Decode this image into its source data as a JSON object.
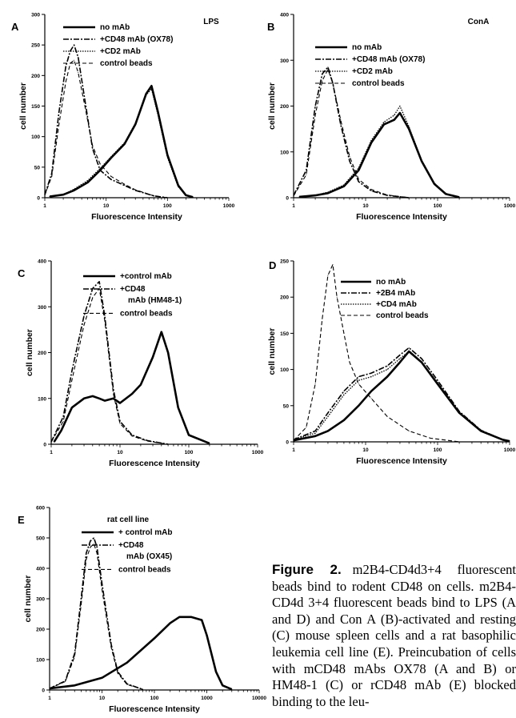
{
  "chart_data": [
    {
      "type": "line",
      "panel": "A",
      "title": "LPS",
      "xlabel": "Fluorescence Intensity",
      "ylabel": "cell number",
      "xscale": "log",
      "xlim": [
        1,
        1000
      ],
      "ylim": [
        0,
        300
      ],
      "xticks": [
        "1",
        "10",
        "100",
        "1000"
      ],
      "yticks": [
        "0",
        "50",
        "100",
        "150",
        "200",
        "250",
        "300"
      ],
      "legend": "top-right",
      "series": [
        {
          "name": "no mAb",
          "style": "solid-thick",
          "x": [
            1.2,
            2,
            3,
            5,
            8,
            12,
            20,
            30,
            45,
            55,
            70,
            100,
            150,
            200,
            260
          ],
          "y": [
            2,
            5,
            12,
            25,
            45,
            65,
            88,
            120,
            170,
            183,
            140,
            70,
            20,
            4,
            1
          ]
        },
        {
          "name": "+CD48 mAb (OX78)",
          "style": "dash-dot",
          "x": [
            1,
            1.3,
            1.7,
            2.2,
            2.6,
            3,
            3.5,
            4.5,
            6,
            8,
            12,
            20,
            30,
            60,
            100
          ],
          "y": [
            5,
            40,
            140,
            215,
            240,
            250,
            230,
            160,
            80,
            45,
            30,
            20,
            12,
            3,
            0
          ]
        },
        {
          "name": "+CD2 mAb",
          "style": "dotted",
          "x": [
            1.2,
            2,
            3,
            5,
            8,
            12,
            20,
            30,
            45,
            55,
            70,
            100,
            150,
            200,
            260
          ],
          "y": [
            2,
            5,
            14,
            28,
            48,
            67,
            90,
            122,
            168,
            178,
            135,
            66,
            18,
            4,
            1
          ]
        },
        {
          "name": "control beads",
          "style": "dashed",
          "x": [
            1,
            1.3,
            1.7,
            2.2,
            2.6,
            3,
            3.5,
            4.5,
            6,
            8,
            12,
            20,
            30,
            60,
            100
          ],
          "y": [
            4,
            35,
            120,
            190,
            220,
            225,
            205,
            150,
            85,
            55,
            35,
            22,
            13,
            3,
            0
          ]
        }
      ]
    },
    {
      "type": "line",
      "panel": "B",
      "title": "ConA",
      "xlabel": "Fluorescence Intensity",
      "ylabel": "cell number",
      "xscale": "log",
      "xlim": [
        1,
        1000
      ],
      "ylim": [
        0,
        400
      ],
      "xticks": [
        "1",
        "10",
        "100",
        "1000"
      ],
      "yticks": [
        "0",
        "100",
        "200",
        "300",
        "400"
      ],
      "legend": "top-right",
      "series": [
        {
          "name": "no mAb",
          "style": "solid-thick",
          "x": [
            1.2,
            2,
            3,
            5,
            8,
            12,
            18,
            25,
            30,
            40,
            60,
            90,
            130,
            200
          ],
          "y": [
            2,
            5,
            10,
            25,
            60,
            120,
            160,
            170,
            185,
            150,
            80,
            30,
            8,
            1
          ]
        },
        {
          "name": "+CD48 mAb (OX78)",
          "style": "dash-dot",
          "x": [
            1,
            1.5,
            2,
            2.5,
            3,
            3.5,
            4.5,
            6,
            8,
            12,
            20,
            40
          ],
          "y": [
            5,
            60,
            200,
            270,
            285,
            250,
            160,
            80,
            35,
            15,
            5,
            0
          ]
        },
        {
          "name": "+CD2 mAb",
          "style": "dotted",
          "x": [
            1.2,
            2,
            3,
            5,
            8,
            12,
            18,
            25,
            30,
            40,
            60,
            90,
            130,
            200
          ],
          "y": [
            2,
            5,
            12,
            28,
            65,
            125,
            165,
            180,
            200,
            155,
            82,
            32,
            9,
            1
          ]
        },
        {
          "name": "control beads",
          "style": "dashed",
          "x": [
            1,
            1.5,
            2,
            2.5,
            3,
            3.5,
            4.5,
            6,
            8,
            12,
            20,
            40
          ],
          "y": [
            4,
            50,
            180,
            255,
            280,
            250,
            170,
            90,
            40,
            18,
            6,
            0
          ]
        }
      ]
    },
    {
      "type": "line",
      "panel": "C",
      "xlabel": "Fluorescence Intensity",
      "ylabel": "cell number",
      "xscale": "log",
      "xlim": [
        1,
        1000
      ],
      "ylim": [
        0,
        400
      ],
      "xticks": [
        "1",
        "10",
        "100",
        "1000"
      ],
      "yticks": [
        "0",
        "100",
        "200",
        "300",
        "400"
      ],
      "legend": "top-right",
      "series": [
        {
          "name": "+control mAb",
          "style": "solid-thick",
          "x": [
            1.1,
            1.4,
            2,
            3,
            4,
            5,
            6,
            8,
            10,
            15,
            20,
            30,
            40,
            50,
            70,
            100,
            200
          ],
          "y": [
            5,
            30,
            80,
            100,
            105,
            100,
            95,
            100,
            90,
            110,
            130,
            190,
            245,
            200,
            80,
            20,
            2
          ]
        },
        {
          "name": "+CD48 mAb (HM48-1)",
          "style": "dash-dot",
          "x": [
            1,
            1.5,
            2,
            3,
            4,
            5,
            6,
            8,
            10,
            15,
            25,
            50
          ],
          "y": [
            5,
            60,
            160,
            280,
            340,
            355,
            280,
            120,
            50,
            20,
            8,
            0
          ]
        },
        {
          "name": "control beads",
          "style": "dashed",
          "x": [
            1,
            1.5,
            2,
            3,
            4,
            5,
            6,
            8,
            10,
            15,
            25,
            50
          ],
          "y": [
            5,
            50,
            140,
            260,
            320,
            340,
            270,
            110,
            45,
            18,
            7,
            0
          ]
        }
      ]
    },
    {
      "type": "line",
      "panel": "D",
      "xlabel": "Fluorescence Intensity",
      "ylabel": "cell number",
      "xscale": "log",
      "xlim": [
        1,
        1000
      ],
      "ylim": [
        0,
        250
      ],
      "xticks": [
        "1",
        "10",
        "100",
        "1000"
      ],
      "yticks": [
        "0",
        "50",
        "100",
        "150",
        "200",
        "250"
      ],
      "legend": "top-right",
      "series": [
        {
          "name": "no mAb",
          "style": "solid-thick",
          "x": [
            1,
            2,
            3,
            5,
            8,
            12,
            20,
            30,
            40,
            60,
            100,
            200,
            400,
            800,
            1000
          ],
          "y": [
            2,
            8,
            15,
            30,
            50,
            70,
            90,
            110,
            125,
            110,
            80,
            40,
            15,
            3,
            1
          ]
        },
        {
          "name": "+2B4 mAb",
          "style": "dash-dot",
          "x": [
            1,
            2,
            3,
            5,
            8,
            12,
            20,
            30,
            40,
            60,
            100,
            200,
            400,
            800,
            1000
          ],
          "y": [
            3,
            15,
            40,
            70,
            90,
            95,
            105,
            120,
            130,
            115,
            85,
            42,
            16,
            3,
            1
          ]
        },
        {
          "name": "+CD4 mAb",
          "style": "dotted",
          "x": [
            1,
            2,
            3,
            5,
            8,
            12,
            20,
            30,
            40,
            60,
            100,
            200,
            400,
            800,
            1000
          ],
          "y": [
            3,
            12,
            35,
            65,
            85,
            90,
            100,
            115,
            125,
            110,
            82,
            40,
            15,
            3,
            1
          ]
        },
        {
          "name": "control beads",
          "style": "dashed",
          "x": [
            1,
            1.5,
            2,
            2.5,
            3,
            3.5,
            4,
            5,
            6,
            8,
            12,
            20,
            40,
            80,
            200
          ],
          "y": [
            2,
            20,
            80,
            170,
            230,
            245,
            200,
            150,
            110,
            80,
            60,
            35,
            15,
            5,
            0
          ]
        }
      ]
    },
    {
      "type": "line",
      "panel": "E",
      "title": "rat cell line",
      "xlabel": "Fluorescence Intensity",
      "ylabel": "cell number",
      "xscale": "log",
      "xlim": [
        1,
        10000
      ],
      "ylim": [
        0,
        600
      ],
      "xticks": [
        "1",
        "10",
        "100",
        "1000",
        "10000"
      ],
      "yticks": [
        "0",
        "100",
        "200",
        "300",
        "400",
        "500",
        "600"
      ],
      "legend": "top-right",
      "series": [
        {
          "name": "+ control mAb",
          "style": "solid-thick",
          "x": [
            1,
            3,
            10,
            30,
            100,
            200,
            300,
            500,
            800,
            1000,
            1500,
            2000,
            3000
          ],
          "y": [
            5,
            15,
            40,
            90,
            170,
            220,
            240,
            240,
            230,
            180,
            60,
            15,
            2
          ]
        },
        {
          "name": "+CD48 mAb (OX45)",
          "style": "dash-dot",
          "x": [
            1,
            2,
            3,
            4,
            5,
            6,
            7,
            8,
            10,
            15,
            20,
            30,
            60
          ],
          "y": [
            5,
            30,
            120,
            300,
            450,
            490,
            500,
            470,
            350,
            150,
            60,
            20,
            2
          ]
        },
        {
          "name": "control beads",
          "style": "dashed",
          "x": [
            1,
            2,
            3,
            4,
            5,
            6,
            7,
            8,
            10,
            15,
            20,
            30,
            60
          ],
          "y": [
            5,
            28,
            110,
            280,
            430,
            470,
            480,
            450,
            330,
            140,
            55,
            18,
            2
          ]
        }
      ]
    }
  ],
  "caption": {
    "label": "Figure 2.",
    "text": "m2B4-CD4d3+4 fluorescent beads bind to rodent CD48 on cells. m2B4-CD4d 3+4 fluorescent beads bind to LPS (A and D) and Con A (B)-activated and resting (C) mouse spleen cells and a rat basophilic leukemia cell line (E). Preincubation of cells with mCD48 mAbs OX78 (A and B) or HM48-1 (C) or rCD48 mAb (E) blocked binding to the leu-"
  }
}
